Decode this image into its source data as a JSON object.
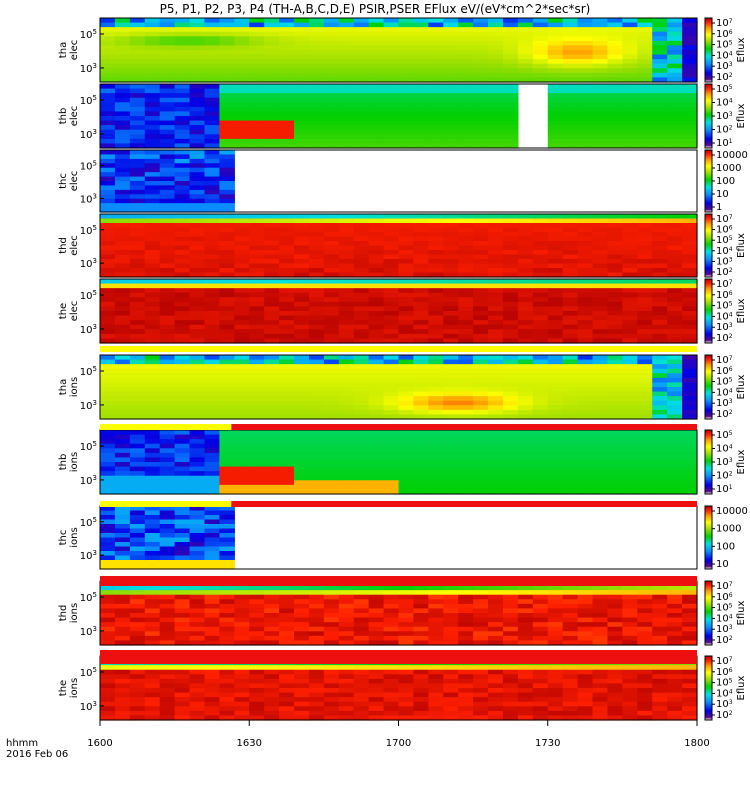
{
  "title": "P5, P1, P2, P3, P4 (TH-A,B,C,D,E) PSIR,PSER EFlux eV/(eV*cm^2*sec*sr)",
  "footer": {
    "format": "hhmm",
    "date": "2016 Feb 06"
  },
  "xaxis": {
    "range": [
      1600,
      1800
    ],
    "ticks": [
      "1600",
      "1630",
      "1700",
      "1730",
      "1800"
    ]
  },
  "colorbar_title": "Eflux",
  "chart_data": {
    "type": "heatmap",
    "panels": [
      {
        "probe": "tha",
        "species": "elec",
        "y_ticks": [
          "10^5",
          "10^3"
        ],
        "cbar_ticks": [
          "10^7",
          "10^6",
          "10^5",
          "10^4",
          "10^3",
          "10^2"
        ],
        "cbar_label": "Eflux"
      },
      {
        "probe": "thb",
        "species": "elec",
        "y_ticks": [
          "10^5",
          "10^3"
        ],
        "cbar_ticks": [
          "10^5",
          "10^4",
          "10^3",
          "10^2",
          "10^1"
        ],
        "cbar_label": "Eflux"
      },
      {
        "probe": "thc",
        "species": "elec",
        "y_ticks": [
          "10^5",
          "10^3"
        ],
        "cbar_ticks": [
          "10000",
          "1000",
          "100",
          "10",
          "1"
        ],
        "cbar_label": ""
      },
      {
        "probe": "thd",
        "species": "elec",
        "y_ticks": [
          "10^5",
          "10^3"
        ],
        "cbar_ticks": [
          "10^7",
          "10^6",
          "10^5",
          "10^4",
          "10^3",
          "10^2"
        ],
        "cbar_label": "Eflux"
      },
      {
        "probe": "the",
        "species": "elec",
        "y_ticks": [
          "10^5",
          "10^3"
        ],
        "cbar_ticks": [
          "10^7",
          "10^6",
          "10^5",
          "10^4",
          "10^3",
          "10^2"
        ],
        "cbar_label": "Eflux"
      },
      {
        "probe": "tha",
        "species": "ions",
        "y_ticks": [
          "10^5",
          "10^3"
        ],
        "cbar_ticks": [
          "10^7",
          "10^6",
          "10^5",
          "10^4",
          "10^3",
          "10^2"
        ],
        "cbar_label": "Eflux"
      },
      {
        "probe": "thb",
        "species": "ions",
        "y_ticks": [
          "10^5",
          "10^3"
        ],
        "cbar_ticks": [
          "10^5",
          "10^4",
          "10^3",
          "10^2",
          "10^1"
        ],
        "cbar_label": "Eflux"
      },
      {
        "probe": "thc",
        "species": "ions",
        "y_ticks": [
          "10^5",
          "10^3"
        ],
        "cbar_ticks": [
          "10000",
          "1000",
          "100",
          "10"
        ],
        "cbar_label": ""
      },
      {
        "probe": "thd",
        "species": "ions",
        "y_ticks": [
          "10^5",
          "10^3"
        ],
        "cbar_ticks": [
          "10^7",
          "10^6",
          "10^5",
          "10^4",
          "10^3",
          "10^2"
        ],
        "cbar_label": "Eflux"
      },
      {
        "probe": "the",
        "species": "ions",
        "y_ticks": [
          "10^5",
          "10^3"
        ],
        "cbar_ticks": [
          "10^7",
          "10^6",
          "10^5",
          "10^4",
          "10^3",
          "10^2"
        ],
        "cbar_label": "Eflux"
      }
    ]
  }
}
